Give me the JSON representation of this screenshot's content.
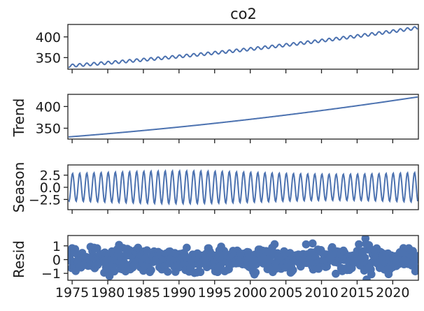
{
  "chart_data": [
    {
      "type": "line",
      "title": "co2",
      "ylabel": "",
      "xlim": [
        1974.4,
        2023.6
      ],
      "ylim": [
        322,
        430
      ],
      "yticks": [
        350,
        400
      ],
      "color": "#4c72b0",
      "series": {
        "start": 1974.5,
        "end": 2023.5,
        "y_start": 330,
        "y_end": 422,
        "curvature": 0.32,
        "seasonal_amplitude": 3.5
      }
    },
    {
      "type": "line",
      "ylabel": "Trend",
      "xlim": [
        1974.4,
        2023.6
      ],
      "ylim": [
        325,
        428
      ],
      "yticks": [
        350,
        400
      ],
      "color": "#4c72b0",
      "series": {
        "start": 1974.5,
        "end": 2023.5,
        "y_start": 330,
        "y_end": 422,
        "curvature": 0.32
      }
    },
    {
      "type": "line",
      "ylabel": "Season",
      "xlim": [
        1974.4,
        2023.6
      ],
      "ylim": [
        -4.6,
        4.6
      ],
      "yticks": [
        -2.5,
        0.0,
        2.5
      ],
      "ytick_labels": [
        "−2.5",
        "0.0",
        "2.5"
      ],
      "color": "#4c72b0",
      "series": {
        "start": 1974.5,
        "end": 2023.5,
        "amplitude": 3.4
      }
    },
    {
      "type": "scatter",
      "ylabel": "Resid",
      "xlim": [
        1974.4,
        2023.6
      ],
      "ylim": [
        -1.5,
        1.75
      ],
      "yticks": [
        -1,
        0,
        1
      ],
      "ytick_labels": [
        "−1",
        "0",
        "1"
      ],
      "color": "#4c72b0",
      "xticks": [
        1975,
        1980,
        1985,
        1990,
        1995,
        2000,
        2005,
        2010,
        2015,
        2020
      ],
      "series": {
        "start": 1974.5,
        "end": 2023.5,
        "spread": 0.85
      }
    }
  ]
}
